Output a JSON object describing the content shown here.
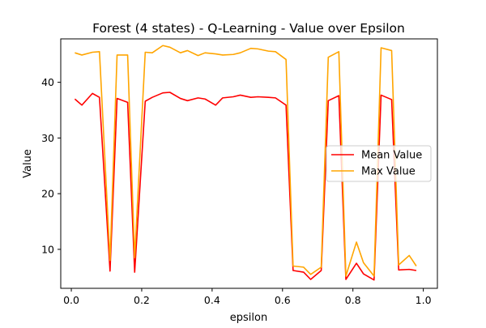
{
  "chart_data": {
    "type": "line",
    "title": "Forest (4 states) - Q-Learning - Value over Epsilon",
    "xlabel": "epsilon",
    "ylabel": "Value",
    "xlim": [
      -0.03,
      1.04
    ],
    "ylim": [
      3.0,
      47.8
    ],
    "xticks": [
      0.0,
      0.2,
      0.4,
      0.6,
      0.8,
      1.0
    ],
    "xtick_labels": [
      "0.0",
      "0.2",
      "0.4",
      "0.6",
      "0.8",
      "1.0"
    ],
    "yticks": [
      10,
      20,
      30,
      40
    ],
    "ytick_labels": [
      "10",
      "20",
      "30",
      "40"
    ],
    "grid": false,
    "legend": "center-right",
    "x": [
      0.01,
      0.03,
      0.06,
      0.08,
      0.11,
      0.13,
      0.16,
      0.18,
      0.21,
      0.23,
      0.26,
      0.28,
      0.31,
      0.33,
      0.36,
      0.38,
      0.41,
      0.43,
      0.46,
      0.48,
      0.51,
      0.53,
      0.56,
      0.58,
      0.61,
      0.63,
      0.66,
      0.68,
      0.71,
      0.73,
      0.76,
      0.78,
      0.81,
      0.83,
      0.86,
      0.88,
      0.91,
      0.93,
      0.96,
      0.98
    ],
    "series": [
      {
        "name": "Mean Value",
        "color": "#ff0000",
        "values": [
          37.0,
          35.9,
          38.0,
          37.3,
          6.1,
          37.1,
          36.4,
          5.9,
          36.6,
          37.3,
          38.1,
          38.2,
          37.1,
          36.7,
          37.2,
          37.0,
          35.9,
          37.2,
          37.4,
          37.7,
          37.3,
          37.4,
          37.3,
          37.2,
          35.9,
          6.2,
          5.9,
          4.6,
          6.2,
          36.7,
          37.6,
          4.6,
          7.5,
          5.6,
          4.5,
          37.7,
          36.9,
          6.3,
          6.4,
          6.2
        ]
      },
      {
        "name": "Max Value",
        "color": "#ffa500",
        "values": [
          45.3,
          44.9,
          45.4,
          45.5,
          8.0,
          44.9,
          44.9,
          8.5,
          45.4,
          45.3,
          46.6,
          46.3,
          45.3,
          45.7,
          44.8,
          45.3,
          45.1,
          44.9,
          45.0,
          45.3,
          46.1,
          46.0,
          45.6,
          45.5,
          44.1,
          7.0,
          6.8,
          5.5,
          6.8,
          44.5,
          45.5,
          5.2,
          11.3,
          7.6,
          5.2,
          46.2,
          45.7,
          7.2,
          8.9,
          7.0
        ]
      }
    ]
  }
}
